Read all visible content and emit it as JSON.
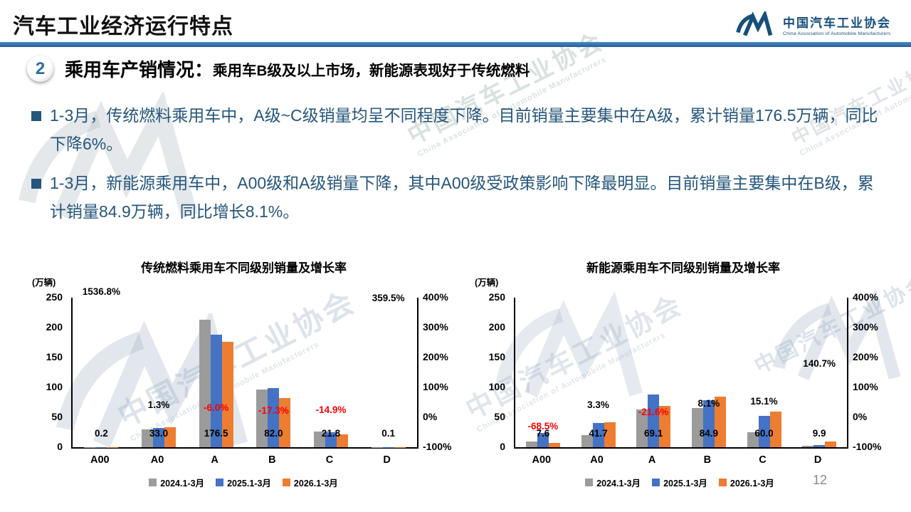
{
  "slide": {
    "title": "汽车工业经济运行特点",
    "page_number": "12"
  },
  "logo": {
    "name_cn": "中国汽车工业协会",
    "name_en": "China Association of Automobile Manufacturers",
    "color": "#174F7C"
  },
  "section": {
    "number": "2",
    "heading": "乘用车产销情况：",
    "subheading": "乘用车B级及以上市场，新能源表现好于传统燃料"
  },
  "bullets": [
    "1-3月，传统燃料乘用车中，A级~C级销量均呈不同程度下降。目前销量主要集中在A级，累计销量176.5万辆，同比下降6%。",
    "1-3月，新能源乘用车中，A00级和A级销量下降，其中A00级受政策影响下降最明显。目前销量主要集中在B级，累计销量84.9万辆，同比增长8.1%。"
  ],
  "watermark": {
    "text_cn": "中国汽车工业协会",
    "text_en": "China Association of Automobile Manufacturers"
  },
  "colors": {
    "divider": "#2E74B5",
    "bullet_text": "#25567B",
    "series_2024": "#9B9B9B",
    "series_2025": "#4472C4",
    "series_2026": "#ED7D31",
    "negative_label": "#FF0000",
    "positive_label": "#000000"
  },
  "chart_data": [
    {
      "type": "bar",
      "title": "传统燃料乘用车不同级别销量及增长率",
      "unit_label": "(万辆)",
      "categories": [
        "A00",
        "A0",
        "A",
        "B",
        "C",
        "D"
      ],
      "series": [
        {
          "name": "2024.1-3月",
          "color": "#9B9B9B",
          "values": [
            0.3,
            30,
            213,
            96,
            26,
            0.1
          ]
        },
        {
          "name": "2025.1-3月",
          "color": "#4472C4",
          "values": [
            0.1,
            32.6,
            187.8,
            99.2,
            25.6,
            0.1
          ]
        },
        {
          "name": "2026.1-3月",
          "color": "#ED7D31",
          "values": [
            0.2,
            33.0,
            176.5,
            82.0,
            21.8,
            0.1
          ]
        }
      ],
      "value_labels": [
        "0.2",
        "33.0",
        "176.5",
        "82.0",
        "21.8",
        "0.1"
      ],
      "growth_labels": [
        "1536.8%",
        "1.3%",
        "-6.0%",
        "-17.3%",
        "-14.9%",
        "359.5%"
      ],
      "growth_values": [
        1536.8,
        1.3,
        -6.0,
        -17.3,
        -14.9,
        359.5
      ],
      "ylabel_ticks": [
        "250",
        "200",
        "150",
        "100",
        "50",
        "0"
      ],
      "y2label_ticks": [
        "400%",
        "300%",
        "200%",
        "100%",
        "0%",
        "-100%"
      ],
      "ylim": [
        0,
        250
      ],
      "y2lim": [
        -100,
        400
      ],
      "grid": false,
      "legend_position": "bottom"
    },
    {
      "type": "bar",
      "title": "新能源乘用车不同级别销量及增长率",
      "unit_label": "(万辆)",
      "categories": [
        "A00",
        "A0",
        "A",
        "B",
        "C",
        "D"
      ],
      "series": [
        {
          "name": "2024.1-3月",
          "color": "#9B9B9B",
          "values": [
            10,
            20,
            63,
            66,
            25,
            2.5
          ]
        },
        {
          "name": "2025.1-3月",
          "color": "#4472C4",
          "values": [
            24.1,
            40.4,
            88.2,
            78.5,
            52.1,
            4.1
          ]
        },
        {
          "name": "2026.1-3月",
          "color": "#ED7D31",
          "values": [
            7.6,
            41.7,
            69.1,
            84.9,
            60.0,
            9.9
          ]
        }
      ],
      "value_labels": [
        "7.6",
        "41.7",
        "69.1",
        "84.9",
        "60.0",
        "9.9"
      ],
      "growth_labels": [
        "-68.5%",
        "3.3%",
        "-21.6%",
        "8.1%",
        "15.1%",
        "140.7%"
      ],
      "growth_values": [
        -68.5,
        3.3,
        -21.6,
        8.1,
        15.1,
        140.7
      ],
      "ylabel_ticks": [
        "250",
        "200",
        "150",
        "100",
        "50",
        "0"
      ],
      "y2label_ticks": [
        "400%",
        "300%",
        "200%",
        "100%",
        "0%",
        "-100%"
      ],
      "ylim": [
        0,
        250
      ],
      "y2lim": [
        -100,
        400
      ],
      "grid": false,
      "legend_position": "bottom"
    }
  ]
}
